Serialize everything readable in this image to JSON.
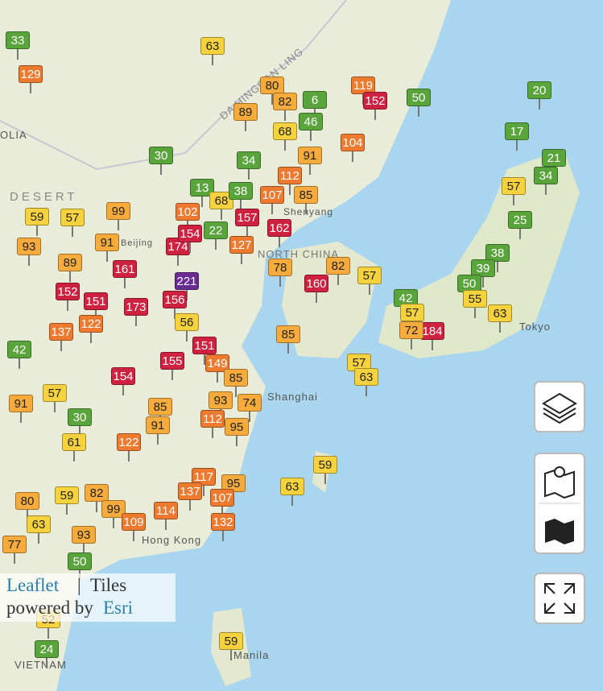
{
  "stations": [
    33,
    129,
    63,
    80,
    82,
    6,
    119,
    152,
    50,
    20,
    89,
    68,
    46,
    30,
    104,
    17,
    91,
    34,
    112,
    21,
    34,
    13,
    68,
    38,
    107,
    85,
    57,
    59,
    57,
    99,
    102,
    157,
    162,
    25,
    93,
    89,
    91,
    174,
    154,
    22,
    127,
    161,
    38,
    78,
    160,
    82,
    57,
    39,
    221,
    152,
    151,
    173,
    156,
    50,
    55,
    42,
    57,
    63,
    184,
    72,
    137,
    122,
    56,
    85,
    151,
    155,
    149,
    57,
    63,
    154,
    85,
    42,
    91,
    57,
    85,
    93,
    74,
    30,
    91,
    112,
    95,
    61,
    122,
    59,
    63,
    80,
    59,
    82,
    95,
    117,
    137,
    107,
    99,
    114,
    63,
    93,
    109,
    132,
    77,
    50,
    52,
    24,
    59
  ],
  "places": [
    "OLIA",
    "DESERT",
    "DA HINGGAN LING",
    "Shanghai",
    "Hong Kong",
    "Tokyo",
    "Manila",
    "VIETNAM",
    "NORTH CHINA",
    "Beijing",
    "Shenyang"
  ],
  "attribution": {
    "leaflet": "Leaflet",
    "separator": "|",
    "tiles": "Tiles",
    "powered_by": "powered by",
    "esri": "Esri"
  }
}
